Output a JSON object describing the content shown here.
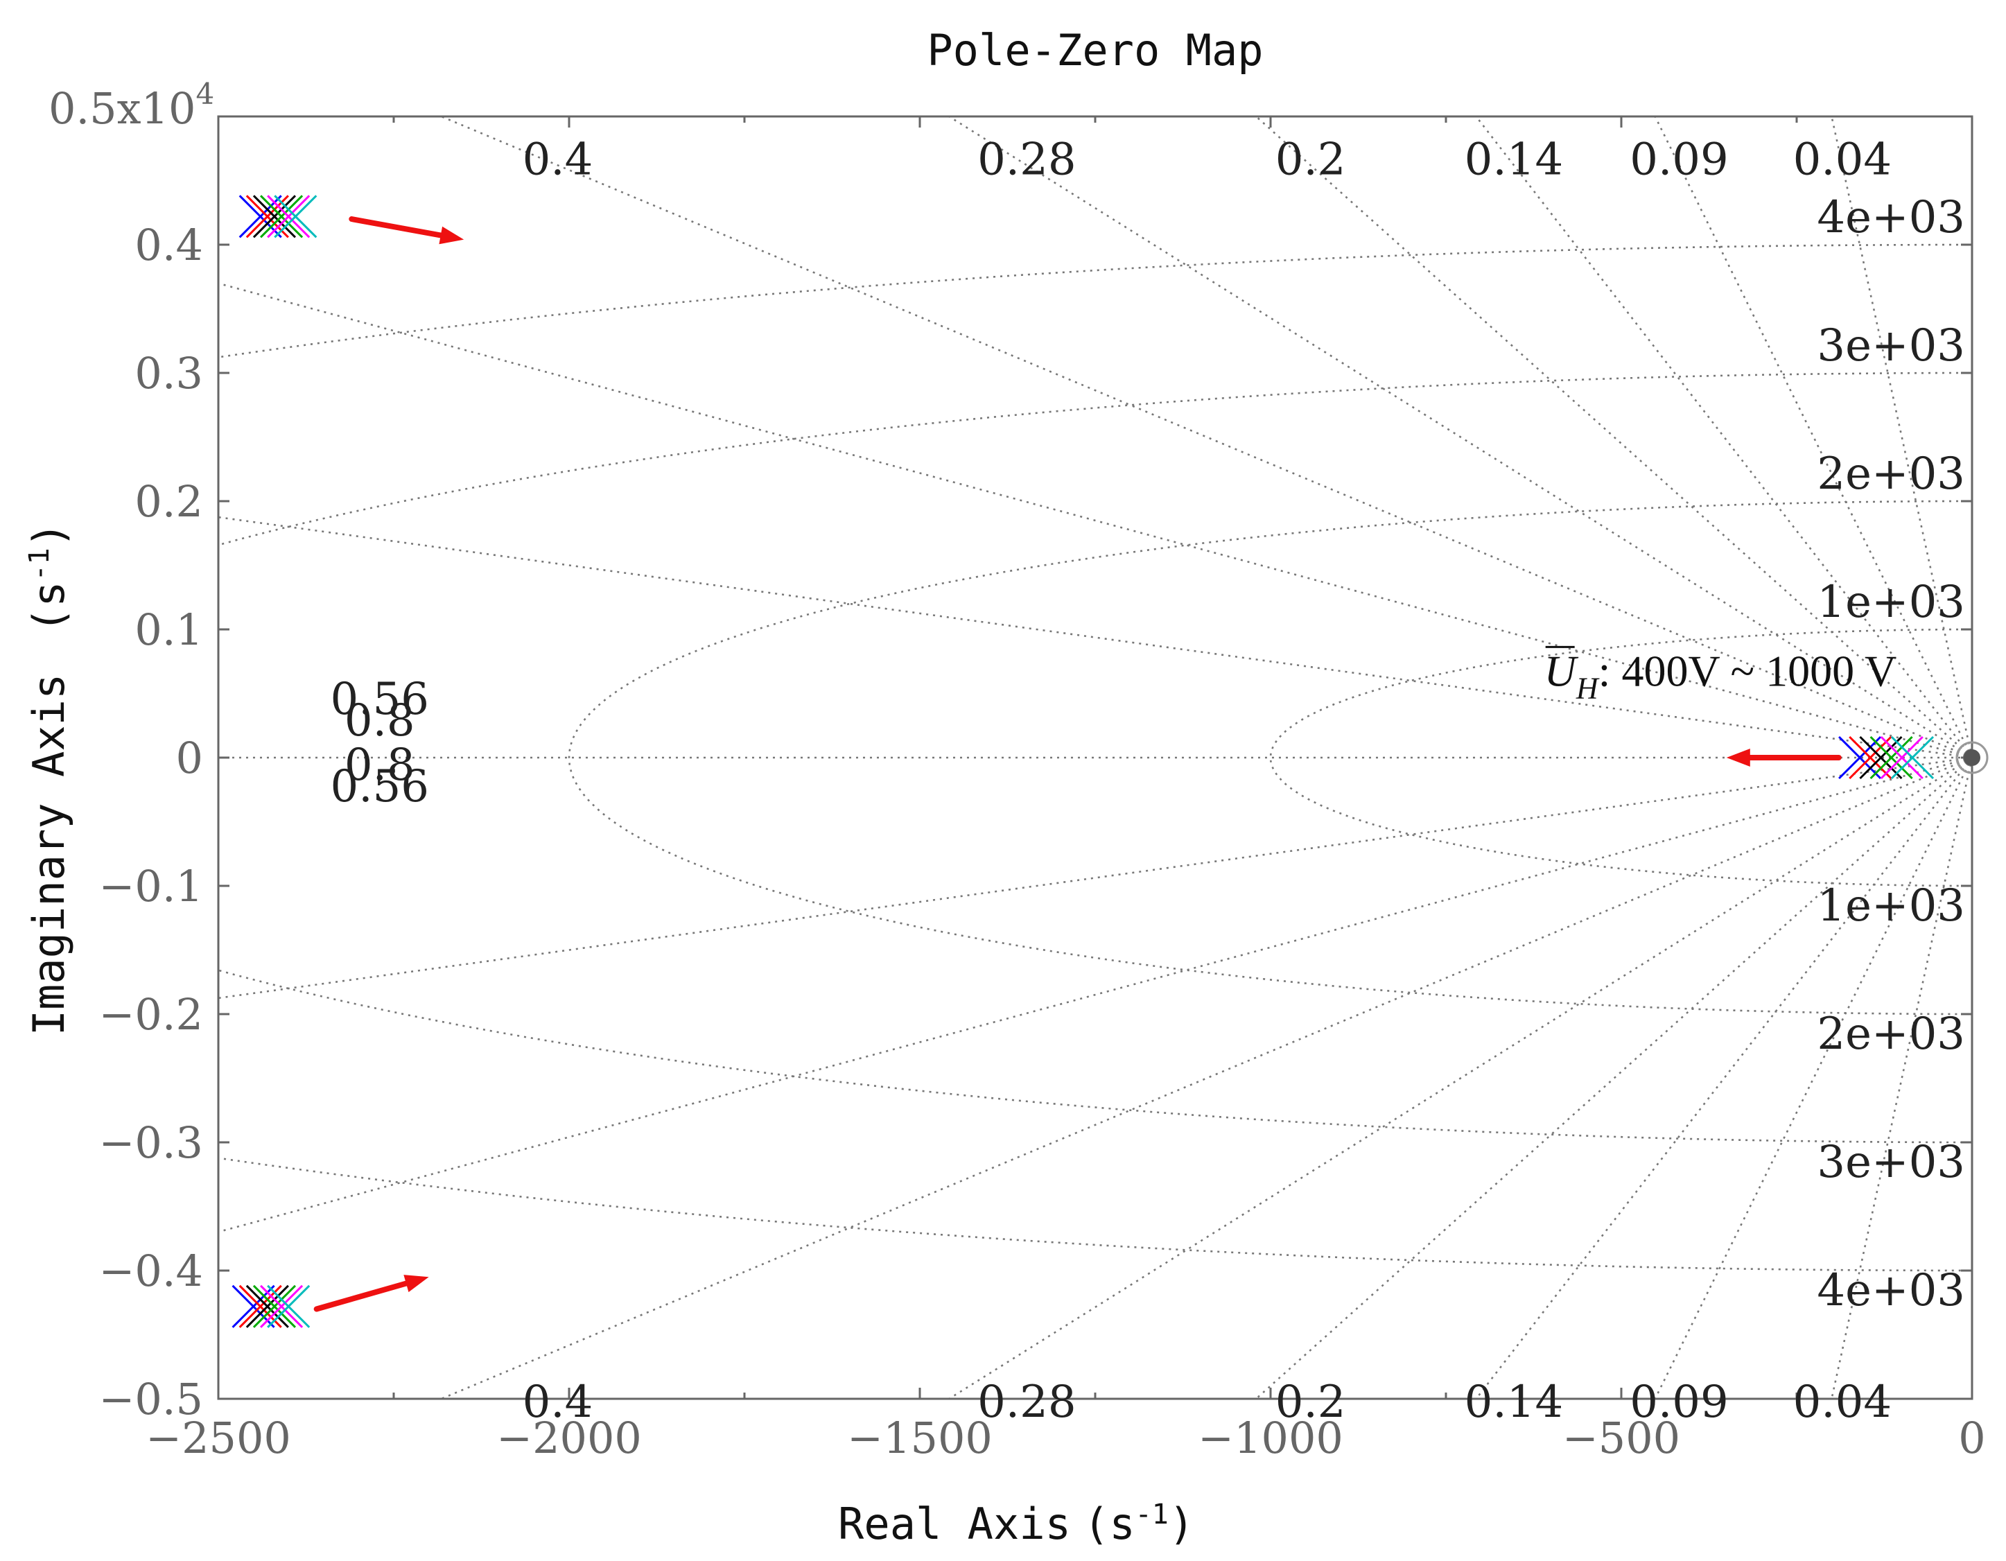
{
  "chart_data": {
    "type": "scatter",
    "subtype": "pole-zero-map",
    "title": "Pole-Zero Map",
    "xlabel": "Real Axis",
    "ylabel": "Imaginary Axis",
    "axis_unit_base": "s",
    "axis_unit_exp": "-1",
    "xlim": [
      -2500,
      0
    ],
    "ylim": [
      -5000,
      5000
    ],
    "x_ticks": [
      -2500,
      -2000,
      -1500,
      -1000,
      -500,
      0
    ],
    "x_tick_labels": [
      "−2500",
      "−2000",
      "−1500",
      "−1000",
      "−500",
      "0"
    ],
    "y_ticks": [
      -5000,
      -4000,
      -3000,
      -2000,
      -1000,
      0,
      1000,
      2000,
      3000,
      4000,
      5000
    ],
    "y_tick_labels": [
      "−0.5",
      "−0.4",
      "−0.3",
      "−0.2",
      "−0.1",
      "0",
      "0.1",
      "0.2",
      "0.3",
      "0.4",
      "0.5"
    ],
    "y_scale_prefix": "0.5x10",
    "y_scale_exp": "4",
    "damping_ratios": [
      0.04,
      0.09,
      0.14,
      0.2,
      0.28,
      0.4,
      0.56,
      0.8
    ],
    "damping_label_text": [
      "0.04",
      "0.09",
      "0.14",
      "0.2",
      "0.28",
      "0.4",
      "0.56",
      "0.8"
    ],
    "natural_frequencies": [
      1000,
      2000,
      3000,
      4000
    ],
    "frequency_label_text": [
      "1e+03",
      "2e+03",
      "3e+03",
      "4e+03"
    ],
    "series_colors": [
      "#0000ff",
      "#ff0000",
      "#000000",
      "#00aa00",
      "#ff00ff",
      "#00bbbb"
    ],
    "poles_upper": [
      [
        -2440,
        4220
      ],
      [
        -2430,
        4220
      ],
      [
        -2420,
        4220
      ],
      [
        -2410,
        4220
      ],
      [
        -2400,
        4220
      ],
      [
        -2390,
        4220
      ]
    ],
    "poles_lower": [
      [
        -2450,
        -4280
      ],
      [
        -2440,
        -4280
      ],
      [
        -2430,
        -4280
      ],
      [
        -2420,
        -4280
      ],
      [
        -2410,
        -4280
      ],
      [
        -2400,
        -4280
      ]
    ],
    "poles_real": [
      [
        -160,
        0
      ],
      [
        -145,
        0
      ],
      [
        -130,
        0
      ],
      [
        -115,
        0
      ],
      [
        -100,
        0
      ],
      [
        -85,
        0
      ]
    ],
    "zero": [
      0,
      0
    ],
    "arrows": [
      {
        "from": [
          -2310,
          4200
        ],
        "to": [
          -2150,
          4040
        ]
      },
      {
        "from": [
          -2360,
          -4300
        ],
        "to": [
          -2200,
          -4050
        ]
      },
      {
        "from": [
          -190,
          0
        ],
        "to": [
          -350,
          0
        ]
      }
    ],
    "annotation": {
      "symbol": "U",
      "subscript": "H",
      "text": ": 400V ~ 1000 V",
      "position": [
        -610,
        560
      ]
    }
  }
}
